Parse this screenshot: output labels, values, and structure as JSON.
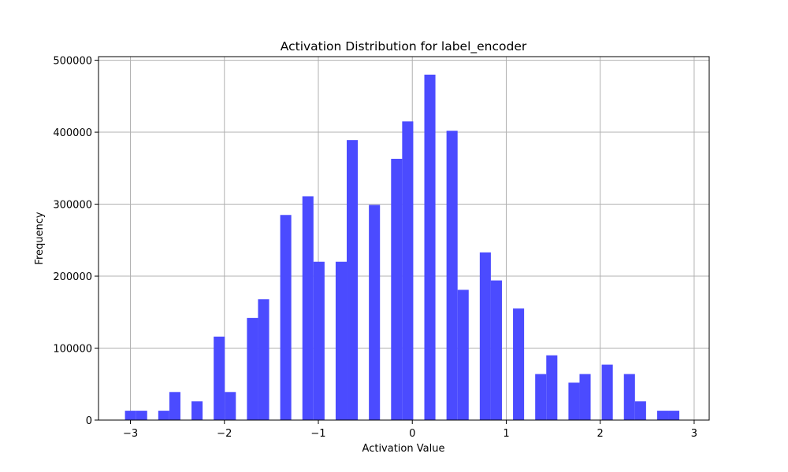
{
  "chart_data": {
    "type": "bar",
    "title": "Activation Distribution for label_encoder",
    "xlabel": "Activation Value",
    "ylabel": "Frequency",
    "xlim": [
      -3.34,
      3.16
    ],
    "ylim": [
      0,
      505000
    ],
    "x_ticks": [
      -3,
      -2,
      -1,
      0,
      1,
      2,
      3
    ],
    "x_tick_labels": [
      "−3",
      "−2",
      "−1",
      "0",
      "1",
      "2",
      "3"
    ],
    "y_ticks": [
      0,
      100000,
      200000,
      300000,
      400000,
      500000
    ],
    "y_tick_labels": [
      "0",
      "100000",
      "200000",
      "300000",
      "400000",
      "500000"
    ],
    "bin_width": 0.118,
    "bins": [
      {
        "x0": -3.058,
        "value": 13000
      },
      {
        "x0": -2.94,
        "value": 13000
      },
      {
        "x0": -2.704,
        "value": 13000
      },
      {
        "x0": -2.586,
        "value": 39000
      },
      {
        "x0": -2.35,
        "value": 26000
      },
      {
        "x0": -2.114,
        "value": 116000
      },
      {
        "x0": -1.996,
        "value": 39000
      },
      {
        "x0": -1.76,
        "value": 142000
      },
      {
        "x0": -1.642,
        "value": 168000
      },
      {
        "x0": -1.406,
        "value": 285000
      },
      {
        "x0": -1.17,
        "value": 311000
      },
      {
        "x0": -1.052,
        "value": 220000
      },
      {
        "x0": -0.816,
        "value": 220000
      },
      {
        "x0": -0.698,
        "value": 389000
      },
      {
        "x0": -0.462,
        "value": 299000
      },
      {
        "x0": -0.226,
        "value": 363000
      },
      {
        "x0": -0.108,
        "value": 415000
      },
      {
        "x0": 0.128,
        "value": 480000
      },
      {
        "x0": 0.364,
        "value": 402000
      },
      {
        "x0": 0.482,
        "value": 181000
      },
      {
        "x0": 0.718,
        "value": 233000
      },
      {
        "x0": 0.836,
        "value": 194000
      },
      {
        "x0": 1.072,
        "value": 155000
      },
      {
        "x0": 1.308,
        "value": 64000
      },
      {
        "x0": 1.426,
        "value": 90000
      },
      {
        "x0": 1.662,
        "value": 52000
      },
      {
        "x0": 1.78,
        "value": 64000
      },
      {
        "x0": 2.016,
        "value": 77000
      },
      {
        "x0": 2.252,
        "value": 64000
      },
      {
        "x0": 2.37,
        "value": 26000
      },
      {
        "x0": 2.606,
        "value": 13000
      },
      {
        "x0": 2.724,
        "value": 13000
      }
    ],
    "bar_color": "#4b4bff",
    "grid": true,
    "legend": "none"
  }
}
